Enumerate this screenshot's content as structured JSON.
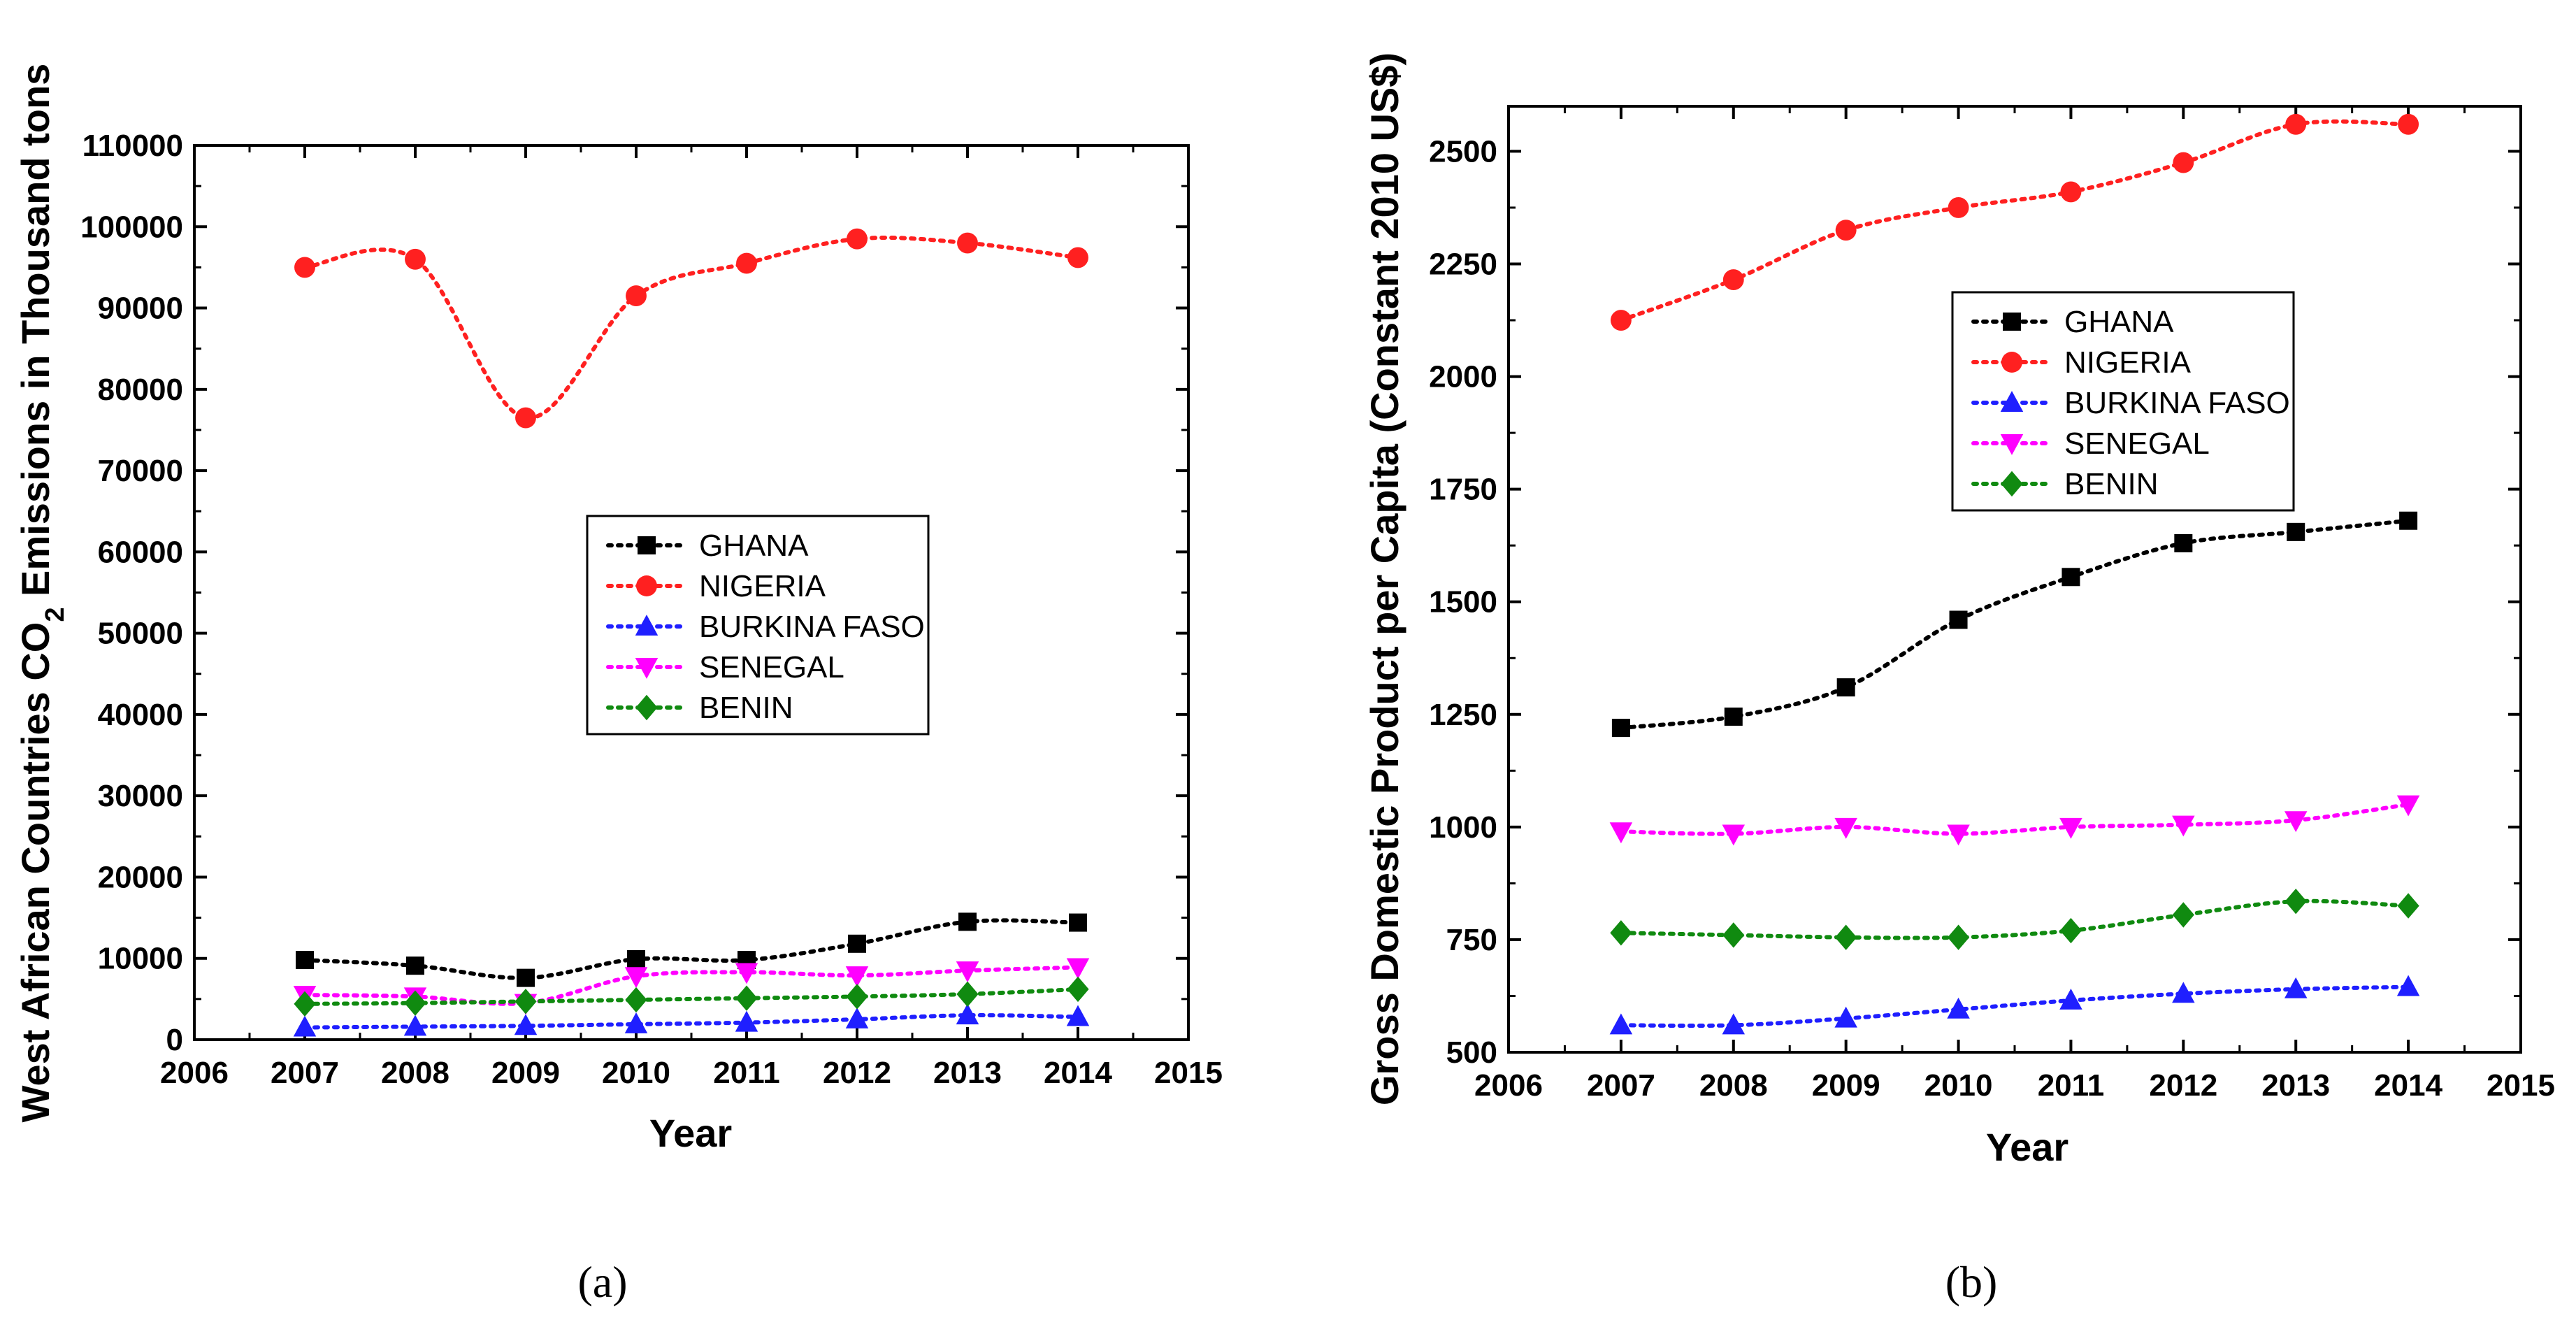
{
  "chart_data": [
    {
      "type": "line",
      "panel_label": "(a)",
      "xlabel": "Year",
      "ylabel": "West African Countries CO",
      "ylabel_sub": "2",
      "ylabel_rest": " Emissions in Thousand tons",
      "xlim": [
        2006,
        2015
      ],
      "ylim": [
        0,
        110000
      ],
      "xticks": [
        "2006",
        "2007",
        "2008",
        "2009",
        "2010",
        "2011",
        "2012",
        "2013",
        "2014",
        "2015"
      ],
      "yticks": [
        "0",
        "10000",
        "20000",
        "30000",
        "40000",
        "50000",
        "60000",
        "70000",
        "80000",
        "90000",
        "100000",
        "110000"
      ],
      "x": [
        2007,
        2008,
        2009,
        2010,
        2011,
        2012,
        2013,
        2014
      ],
      "legend_position": "center-right",
      "series": [
        {
          "name": "GHANA",
          "color": "#000000",
          "marker": "square",
          "values": [
            9800,
            9100,
            7600,
            9900,
            9800,
            11800,
            14500,
            14400
          ]
        },
        {
          "name": "NIGERIA",
          "color": "#ff2020",
          "marker": "circle",
          "values": [
            95000,
            96000,
            76500,
            91500,
            95500,
            98500,
            98000,
            96200
          ]
        },
        {
          "name": "BURKINA FASO",
          "color": "#1f1fff",
          "marker": "triangle-up",
          "values": [
            1500,
            1600,
            1700,
            1900,
            2100,
            2500,
            3000,
            2800
          ]
        },
        {
          "name": "SENEGAL",
          "color": "#ff00ff",
          "marker": "triangle-down",
          "values": [
            5500,
            5300,
            4500,
            7800,
            8300,
            7900,
            8500,
            8900
          ]
        },
        {
          "name": "BENIN",
          "color": "#108a10",
          "marker": "diamond",
          "values": [
            4400,
            4500,
            4700,
            4900,
            5100,
            5300,
            5600,
            6200
          ]
        }
      ]
    },
    {
      "type": "line",
      "panel_label": "(b)",
      "xlabel": "Year",
      "ylabel": "Gross Domestic Product per Capita (Constant 2010 US$)",
      "xlim": [
        2006,
        2015
      ],
      "ylim": [
        500,
        2600
      ],
      "xticks": [
        "2006",
        "2007",
        "2008",
        "2009",
        "2010",
        "2011",
        "2012",
        "2013",
        "2014",
        "2015"
      ],
      "yticks": [
        "500",
        "750",
        "1000",
        "1250",
        "1500",
        "1750",
        "2000",
        "2250",
        "2500"
      ],
      "x": [
        2007,
        2008,
        2009,
        2010,
        2011,
        2012,
        2013,
        2014
      ],
      "legend_position": "top-center",
      "series": [
        {
          "name": "GHANA",
          "color": "#000000",
          "marker": "square",
          "values": [
            1220,
            1245,
            1310,
            1460,
            1555,
            1630,
            1655,
            1680
          ]
        },
        {
          "name": "NIGERIA",
          "color": "#ff2020",
          "marker": "circle",
          "values": [
            2125,
            2215,
            2325,
            2375,
            2410,
            2475,
            2560,
            2560
          ]
        },
        {
          "name": "BURKINA FASO",
          "color": "#1f1fff",
          "marker": "triangle-up",
          "values": [
            560,
            560,
            575,
            595,
            615,
            630,
            640,
            645
          ]
        },
        {
          "name": "SENEGAL",
          "color": "#ff00ff",
          "marker": "triangle-down",
          "values": [
            990,
            985,
            1000,
            985,
            1000,
            1005,
            1015,
            1050
          ]
        },
        {
          "name": "BENIN",
          "color": "#108a10",
          "marker": "diamond",
          "values": [
            765,
            760,
            755,
            755,
            770,
            805,
            835,
            825
          ]
        }
      ]
    }
  ]
}
